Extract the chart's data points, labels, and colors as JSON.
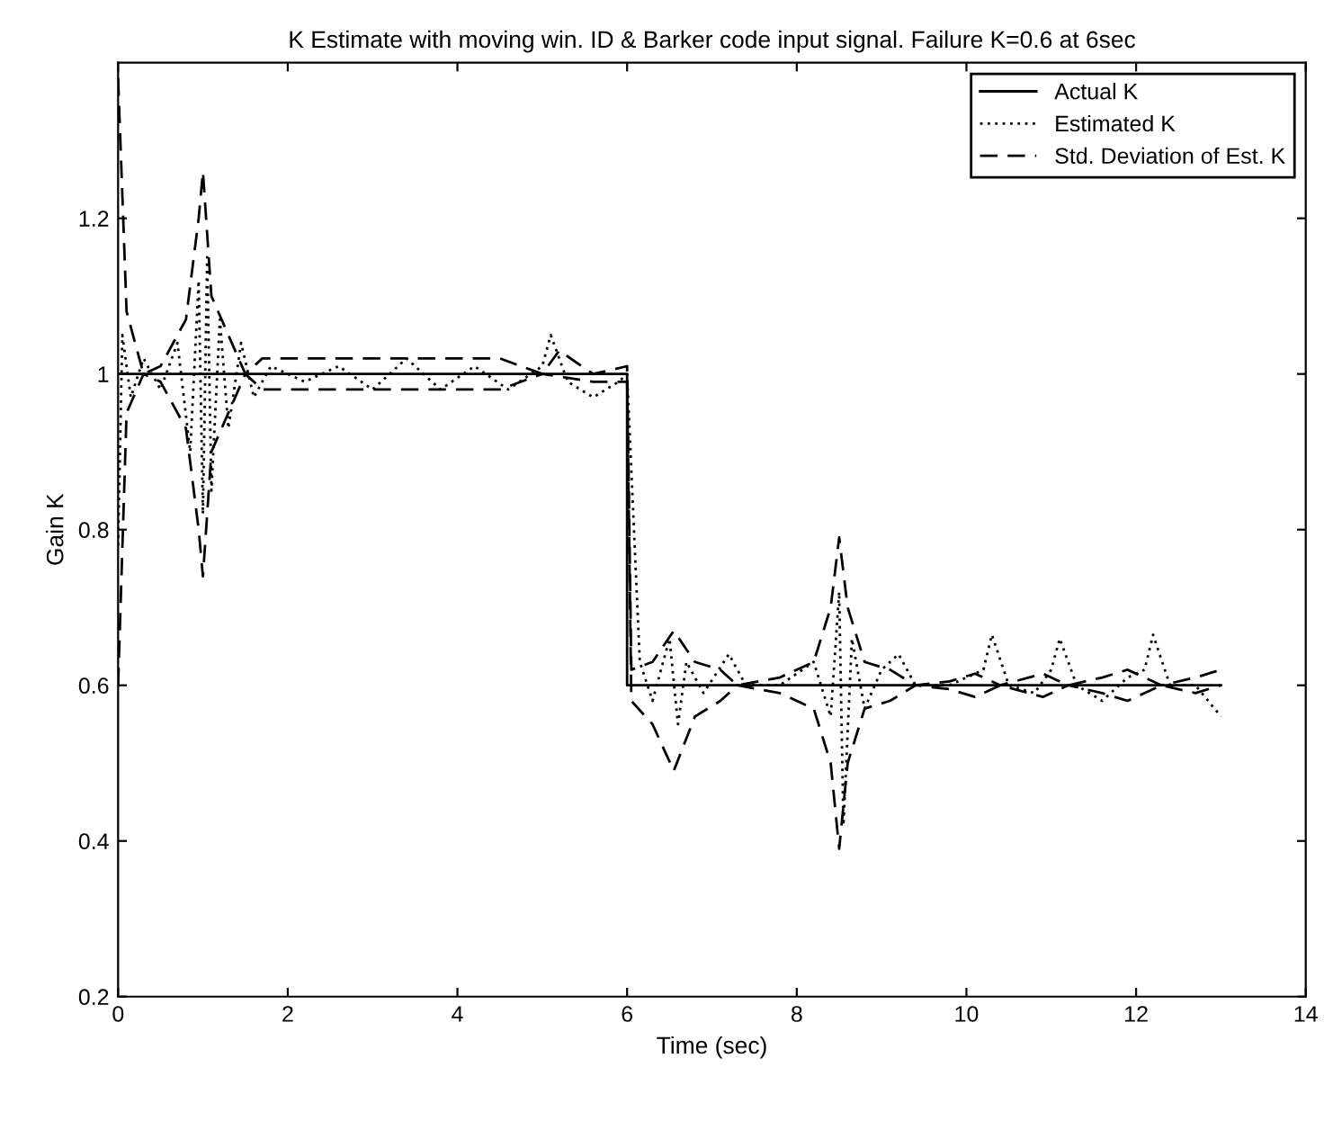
{
  "chart_data": {
    "type": "line",
    "title": "K Estimate with moving win. ID & Barker code input signal. Failure K=0.6 at 6sec",
    "xlabel": "Time (sec)",
    "ylabel": "Gain K",
    "xlim": [
      0,
      14
    ],
    "xticks": [
      0,
      2,
      4,
      6,
      8,
      10,
      12,
      14
    ],
    "ylim": [
      0.2,
      1.4
    ],
    "yticks": [
      0.2,
      0.4,
      0.6,
      0.8,
      1,
      1.2
    ],
    "grid": false,
    "legend": "top right",
    "marker": "none",
    "series": [
      {
        "name": "Actual K",
        "color": "#000000",
        "line_style": "solid",
        "x": [
          0,
          6,
          6,
          13
        ],
        "values": [
          1,
          1,
          0.6,
          0.6
        ]
      },
      {
        "name": "Estimated K",
        "color": "#000000",
        "line_style": "dotted",
        "x": [
          0,
          0.05,
          0.15,
          0.3,
          0.5,
          0.7,
          0.85,
          0.95,
          1.0,
          1.05,
          1.1,
          1.2,
          1.3,
          1.45,
          1.6,
          1.8,
          2.2,
          2.6,
          3.0,
          3.4,
          3.8,
          4.2,
          4.6,
          5.0,
          5.1,
          5.3,
          5.6,
          5.9,
          6.0,
          6.15,
          6.3,
          6.5,
          6.6,
          6.7,
          6.9,
          7.2,
          7.4,
          7.8,
          8.2,
          8.4,
          8.5,
          8.55,
          8.65,
          8.8,
          9.0,
          9.2,
          9.4,
          9.8,
          10.2,
          10.3,
          10.5,
          10.8,
          11.0,
          11.1,
          11.3,
          11.6,
          11.9,
          12.1,
          12.2,
          12.4,
          12.7,
          13.0
        ],
        "values": [
          0.78,
          1.05,
          0.97,
          1.02,
          0.98,
          1.04,
          0.9,
          1.12,
          0.82,
          1.15,
          0.85,
          1.07,
          0.93,
          1.04,
          0.97,
          1.01,
          0.99,
          1.01,
          0.98,
          1.02,
          0.98,
          1.01,
          0.98,
          1.01,
          1.05,
          0.99,
          0.97,
          0.99,
          1.0,
          0.63,
          0.58,
          0.66,
          0.55,
          0.63,
          0.59,
          0.64,
          0.6,
          0.6,
          0.63,
          0.56,
          0.72,
          0.42,
          0.66,
          0.57,
          0.62,
          0.64,
          0.6,
          0.6,
          0.62,
          0.665,
          0.6,
          0.59,
          0.62,
          0.66,
          0.6,
          0.58,
          0.61,
          0.62,
          0.665,
          0.6,
          0.6,
          0.56
        ]
      },
      {
        "name": "Std. Deviation of Est. K",
        "color": "#000000",
        "line_style": "dashed",
        "x": [
          0,
          0.1,
          0.3,
          0.5,
          0.8,
          0.95,
          1.0,
          1.1,
          1.3,
          1.5,
          1.7,
          2.5,
          3.5,
          4.5,
          5.0,
          5.2,
          5.6,
          6.0,
          6.05,
          6.3,
          6.55,
          6.8,
          7.1,
          7.3,
          7.8,
          8.2,
          8.4,
          8.5,
          8.6,
          8.8,
          9.1,
          9.4,
          9.8,
          10.1,
          10.4,
          10.9,
          11.2,
          11.6,
          11.9,
          12.3,
          12.7,
          13.0
        ],
        "values": [
          1.38,
          1.08,
          1.0,
          1.01,
          1.07,
          1.2,
          1.26,
          1.1,
          1.05,
          1.0,
          1.02,
          1.02,
          1.02,
          1.02,
          1.0,
          1.03,
          1.0,
          1.01,
          0.62,
          0.63,
          0.67,
          0.63,
          0.62,
          0.6,
          0.61,
          0.63,
          0.7,
          0.79,
          0.7,
          0.63,
          0.62,
          0.6,
          0.605,
          0.615,
          0.6,
          0.615,
          0.6,
          0.61,
          0.62,
          0.6,
          0.61,
          0.62
        ]
      },
      {
        "color": "#000000",
        "line_style": "dashed",
        "x": [
          0,
          0.1,
          0.3,
          0.5,
          0.8,
          0.95,
          1.0,
          1.1,
          1.3,
          1.5,
          1.7,
          2.5,
          3.5,
          4.5,
          5.0,
          5.6,
          6.0,
          6.05,
          6.3,
          6.55,
          6.8,
          7.1,
          7.3,
          7.8,
          8.2,
          8.4,
          8.5,
          8.6,
          8.8,
          9.1,
          9.4,
          9.8,
          10.1,
          10.4,
          10.9,
          11.2,
          11.6,
          11.9,
          12.3,
          12.7,
          13.0
        ],
        "values": [
          0.6,
          0.95,
          1.0,
          0.99,
          0.93,
          0.8,
          0.74,
          0.9,
          0.95,
          1.0,
          0.98,
          0.98,
          0.98,
          0.98,
          1.0,
          0.99,
          0.99,
          0.58,
          0.55,
          0.49,
          0.56,
          0.58,
          0.6,
          0.59,
          0.57,
          0.5,
          0.39,
          0.5,
          0.57,
          0.58,
          0.6,
          0.595,
          0.585,
          0.6,
          0.585,
          0.6,
          0.59,
          0.58,
          0.6,
          0.59,
          0.6
        ]
      }
    ]
  }
}
